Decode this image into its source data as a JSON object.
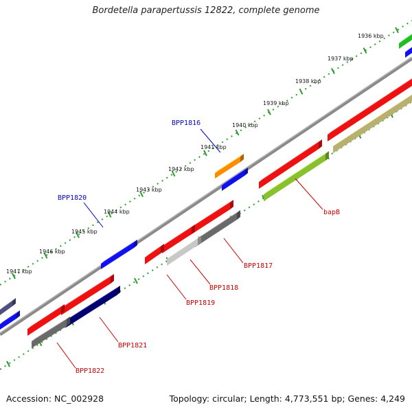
{
  "title": "Bordetella parapertussis 12822, complete genome",
  "footer": {
    "accession": "Accession: NC_002928",
    "summary": "Topology: circular; Length: 4,773,551 bp; Genes: 4,249"
  },
  "axis": {
    "unit": "kbp",
    "ticks": [
      "1936 kbp",
      "1937 kbp",
      "1938 kbp",
      "1939 kbp",
      "1940 kbp",
      "1941 kbp",
      "1942 kbp",
      "1943 kbp",
      "1944 kbp",
      "1945 kbp",
      "1946 kbp",
      "1947 kbp"
    ]
  },
  "colors": {
    "backbone": "#8a8a8a",
    "tick_marks": "#2e9a2e",
    "label_forward": "#0000cc",
    "label_reverse": "#cc0000",
    "red_gene": "#ee1111",
    "blue_gene": "#1111ee",
    "orange_gene": "#ff8c00",
    "green_gene": "#22bb22",
    "navy_gene": "#000070",
    "gray_gene": "#6a6a6a",
    "light_gray_gene": "#c8c8c8",
    "olive_gene": "#b8b070",
    "yellowgreen_gene": "#88c030",
    "slate_gene": "#505080"
  },
  "gene_labels": [
    {
      "text": "BPP1816",
      "strand": "forward"
    },
    {
      "text": "BPP1820",
      "strand": "forward"
    },
    {
      "text": "bapB",
      "strand": "reverse"
    },
    {
      "text": "BPP1817",
      "strand": "reverse"
    },
    {
      "text": "BPP1818",
      "strand": "reverse"
    },
    {
      "text": "BPP1819",
      "strand": "reverse"
    },
    {
      "text": "BPP1821",
      "strand": "reverse"
    },
    {
      "text": "BPP1822",
      "strand": "reverse"
    }
  ]
}
